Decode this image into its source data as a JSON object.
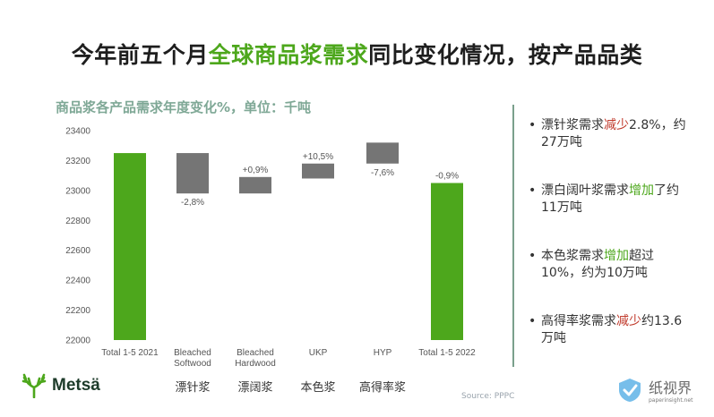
{
  "title": {
    "before": "今年前五个月",
    "highlight": "全球商品浆需求",
    "after": "同比变化情况，按产品品类"
  },
  "subtitle": "商品浆各产品需求年度变化%，单位：千吨",
  "colors": {
    "total": "#4da71c",
    "change": "#757575",
    "increase": "#4da71c",
    "decrease": "#c0392b",
    "axis_text": "#555555"
  },
  "chart_data": {
    "type": "bar",
    "subtype": "waterfall",
    "categories": [
      {
        "line1": "Total 1-5 2021",
        "line2": "",
        "cn": ""
      },
      {
        "line1": "Bleached",
        "line2": "Softwood",
        "cn": "漂针浆"
      },
      {
        "line1": "Bleached",
        "line2": "Hardwood",
        "cn": "漂阔浆"
      },
      {
        "line1": "UKP",
        "line2": "",
        "cn": "本色浆"
      },
      {
        "line1": "HYP",
        "line2": "",
        "cn": "高得率浆"
      },
      {
        "line1": "Total 1-5 2022",
        "line2": "",
        "cn": ""
      }
    ],
    "bars": [
      {
        "kind": "total",
        "base": 22000,
        "top": 23250,
        "label": ""
      },
      {
        "kind": "change",
        "base": 22980,
        "top": 23250,
        "label": "-2,8%",
        "label_pos": "below"
      },
      {
        "kind": "change",
        "base": 22980,
        "top": 23090,
        "label": "+0,9%",
        "label_pos": "above"
      },
      {
        "kind": "change",
        "base": 23080,
        "top": 23180,
        "label": "+10,5%",
        "label_pos": "above"
      },
      {
        "kind": "change",
        "base": 23180,
        "top": 23320,
        "label": "-7,6%",
        "label_pos": "below"
      },
      {
        "kind": "total",
        "base": 22000,
        "top": 23050,
        "label": "-0,9%",
        "label_pos": "above"
      }
    ],
    "ylim": [
      22000,
      23400
    ],
    "yticks": [
      22000,
      22200,
      22400,
      22600,
      22800,
      23000,
      23200,
      23400
    ],
    "grid": false,
    "legend": "none"
  },
  "notes": [
    {
      "parts": [
        {
          "t": "漂针浆需求",
          "c": ""
        },
        {
          "t": "减少",
          "c": "red"
        },
        {
          "t": "2.8%，约27万吨",
          "c": ""
        }
      ]
    },
    {
      "parts": [
        {
          "t": "漂白阔叶浆需求",
          "c": ""
        },
        {
          "t": "增加",
          "c": "green"
        },
        {
          "t": "了约11万吨",
          "c": ""
        }
      ]
    },
    {
      "parts": [
        {
          "t": "本色浆需求",
          "c": ""
        },
        {
          "t": "增加",
          "c": "green"
        },
        {
          "t": "超过10%，约为10万吨",
          "c": ""
        }
      ]
    },
    {
      "parts": [
        {
          "t": "高得率浆需求",
          "c": ""
        },
        {
          "t": "减少",
          "c": "red"
        },
        {
          "t": "约13.6万吨",
          "c": ""
        }
      ]
    }
  ],
  "bullet": "•",
  "logo": {
    "name": "Metsä",
    "icon": "antler-logo-icon"
  },
  "source": "Source: PPPC",
  "watermark": {
    "cn": "纸视界",
    "url": "paperinsight.net",
    "icon": "checkmark-shield-icon"
  }
}
